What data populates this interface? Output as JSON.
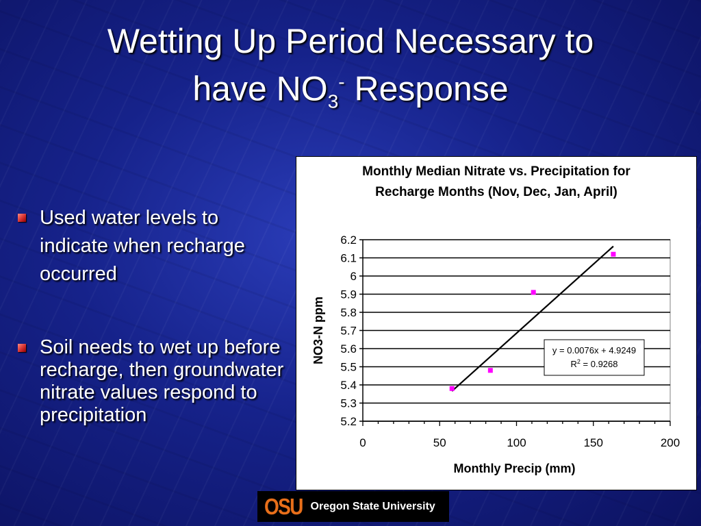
{
  "slide": {
    "title_line1": "Wetting Up Period Necessary to",
    "title_line2_pre": "have NO",
    "title_sub": "3",
    "title_sup": "-",
    "title_line2_post": " Response",
    "bullets": [
      "Used water levels to indicate when recharge occurred",
      "Soil needs to wet up before recharge, then groundwater nitrate values respond to precipitation"
    ],
    "logo": {
      "mark": "OSU",
      "text": "Oregon State University",
      "accent_color": "#e86f1a"
    },
    "colors": {
      "background": "#16228a",
      "bullet": "#d32f2f",
      "text": "#ffffff"
    }
  },
  "chart_data": {
    "type": "scatter",
    "title_line1": "Monthly Median Nitrate vs. Precipitation for",
    "title_line2": "Recharge Months (Nov, Dec, Jan, April)",
    "xlabel": "Monthly Precip (mm)",
    "ylabel": "NO3-N ppm",
    "xlim": [
      0,
      200
    ],
    "ylim": [
      5.2,
      6.2
    ],
    "xticks": [
      "0",
      "50",
      "100",
      "150",
      "200"
    ],
    "yticks": [
      "5.2",
      "5.3",
      "5.4",
      "5.5",
      "5.6",
      "5.7",
      "5.8",
      "5.9",
      "6",
      "6.1",
      "6.2"
    ],
    "grid": "horizontal",
    "points": [
      {
        "x": 58,
        "y": 5.38
      },
      {
        "x": 83,
        "y": 5.48
      },
      {
        "x": 111,
        "y": 5.91
      },
      {
        "x": 163,
        "y": 6.12
      }
    ],
    "marker_color": "#ff00ff",
    "trendline": {
      "slope": 0.0076,
      "intercept": 4.9249,
      "x_range": [
        58,
        163
      ]
    },
    "equation_label": "y = 0.0076x + 4.9249",
    "r2_label_pre": "R",
    "r2_label_sup": "2",
    "r2_label_post": " = 0.9268"
  }
}
